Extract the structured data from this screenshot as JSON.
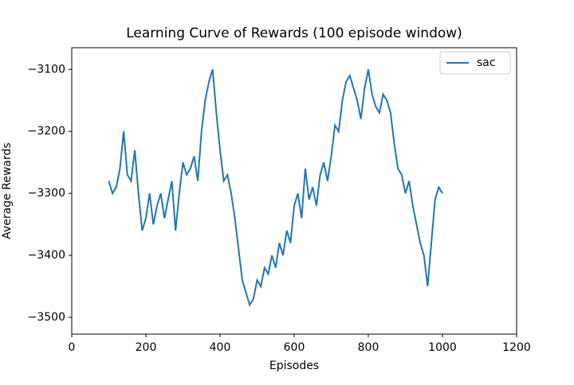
{
  "chart_data": {
    "type": "line",
    "title": "Learning Curve of Rewards (100 episode window)",
    "x_label": "Episodes",
    "y_label": "Average Rewards",
    "x": [
      100,
      110,
      120,
      130,
      140,
      150,
      160,
      170,
      180,
      190,
      200,
      210,
      220,
      230,
      240,
      250,
      260,
      270,
      280,
      290,
      300,
      310,
      320,
      330,
      340,
      350,
      360,
      370,
      380,
      390,
      400,
      410,
      420,
      430,
      440,
      450,
      460,
      470,
      480,
      490,
      500,
      510,
      520,
      530,
      540,
      550,
      560,
      570,
      580,
      590,
      600,
      610,
      620,
      630,
      640,
      650,
      660,
      670,
      680,
      690,
      700,
      710,
      720,
      730,
      740,
      750,
      760,
      770,
      780,
      790,
      800,
      810,
      820,
      830,
      840,
      850,
      860,
      870,
      880,
      890,
      900,
      910,
      920,
      930,
      940,
      950,
      960,
      970,
      980,
      990,
      1000
    ],
    "series": [
      {
        "name": "sac",
        "color": "#1f77b4",
        "values": [
          -3280,
          -3300,
          -3290,
          -3260,
          -3200,
          -3270,
          -3280,
          -3230,
          -3300,
          -3360,
          -3340,
          -3300,
          -3350,
          -3320,
          -3300,
          -3340,
          -3310,
          -3280,
          -3360,
          -3300,
          -3250,
          -3270,
          -3260,
          -3240,
          -3280,
          -3200,
          -3150,
          -3120,
          -3100,
          -3170,
          -3230,
          -3280,
          -3270,
          -3300,
          -3340,
          -3390,
          -3440,
          -3460,
          -3480,
          -3470,
          -3440,
          -3450,
          -3420,
          -3430,
          -3400,
          -3420,
          -3380,
          -3400,
          -3360,
          -3380,
          -3320,
          -3300,
          -3340,
          -3260,
          -3310,
          -3290,
          -3320,
          -3270,
          -3250,
          -3280,
          -3240,
          -3190,
          -3200,
          -3150,
          -3120,
          -3110,
          -3130,
          -3150,
          -3180,
          -3130,
          -3100,
          -3140,
          -3160,
          -3170,
          -3140,
          -3150,
          -3170,
          -3220,
          -3260,
          -3270,
          -3300,
          -3280,
          -3320,
          -3350,
          -3380,
          -3400,
          -3450,
          -3380,
          -3310,
          -3290,
          -3300
        ]
      }
    ],
    "xlim": [
      0,
      1200
    ],
    "xticks": [
      0,
      200,
      400,
      600,
      800,
      1000,
      1200
    ],
    "ylim": [
      -3527,
      -3065
    ],
    "yticks": [
      {
        "value": -3500,
        "label": "−3500"
      },
      {
        "value": -3400,
        "label": "−3400"
      },
      {
        "value": -3300,
        "label": "−3300"
      },
      {
        "value": -3200,
        "label": "−3200"
      },
      {
        "value": -3100,
        "label": "−3100"
      }
    ],
    "legend": "upper right"
  }
}
